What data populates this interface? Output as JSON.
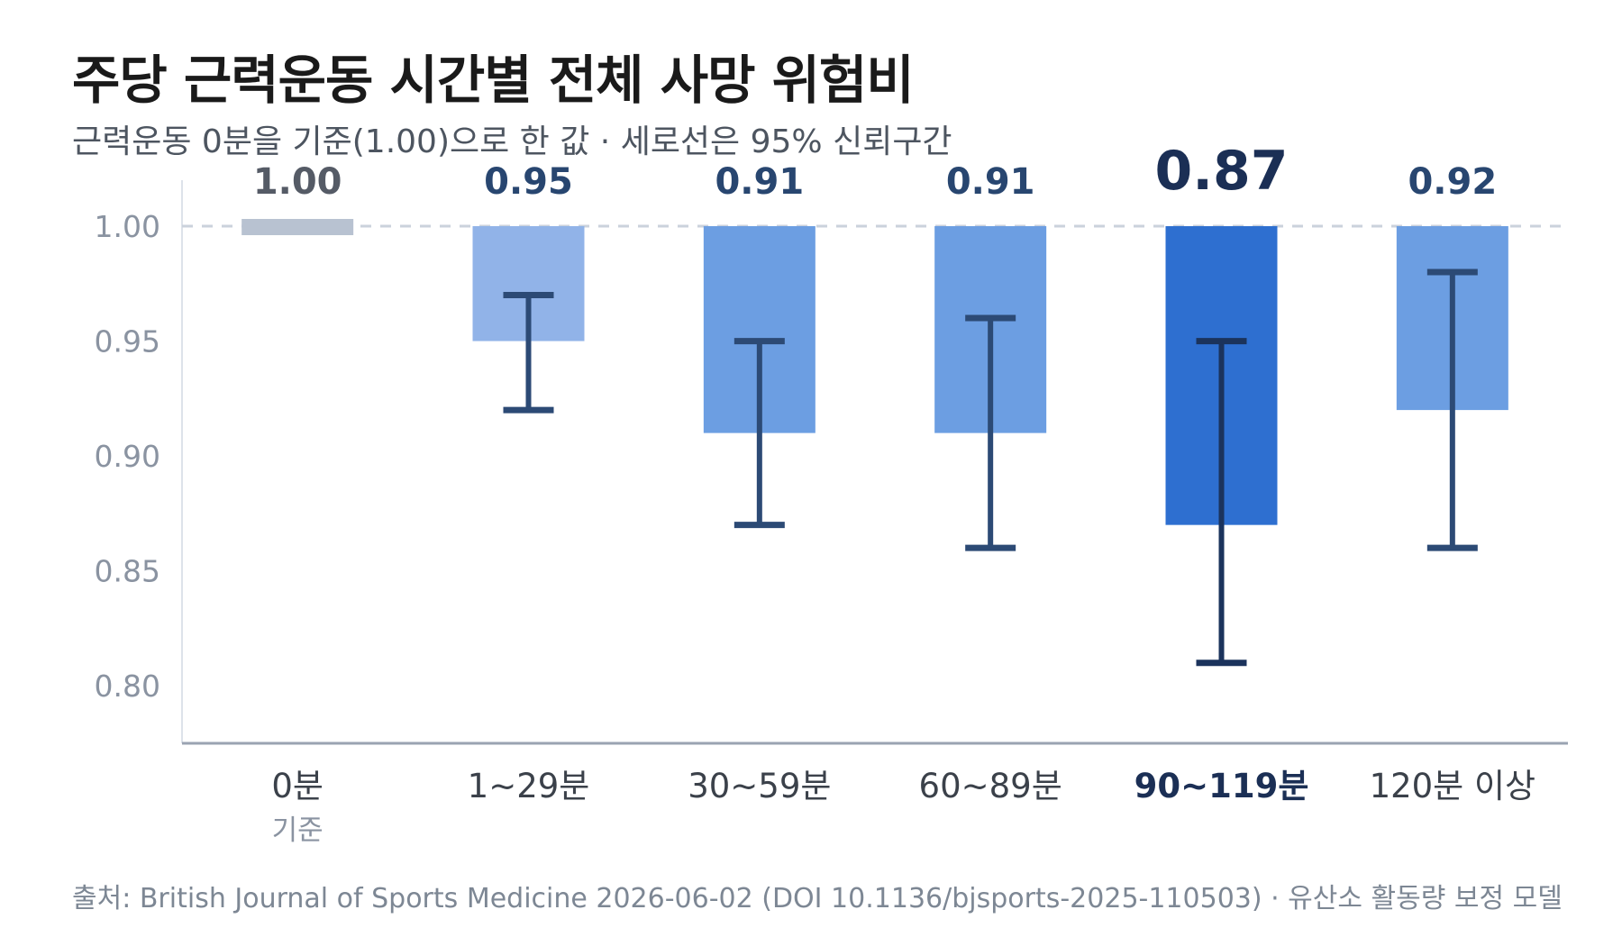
{
  "header": {
    "title": "주당 근력운동 시간별 전체 사망 위험비",
    "subtitle": "근력운동 0분을 기준(1.00)으로 한 값 · 세로선은 95% 신뢰구간"
  },
  "footer": {
    "source": "출처: British Journal of Sports Medicine 2026-06-02 (DOI 10.1136/bjsports-2025-110503) · 유산소 활동량 보정 모델"
  },
  "chart_data": {
    "type": "bar",
    "baseline": 1.0,
    "ylim": [
      0.775,
      1.02
    ],
    "yticks": [
      "1.00",
      "0.95",
      "0.90",
      "0.85",
      "0.80"
    ],
    "reference_line": 1.0,
    "categories": [
      {
        "label": "0분",
        "sublabel": "기준",
        "value": 1.0,
        "value_label": "1.00",
        "ci": null,
        "role": "reference",
        "color": "#b8c2d1"
      },
      {
        "label": "1~29분",
        "value": 0.95,
        "value_label": "0.95",
        "ci": [
          0.92,
          0.97
        ],
        "color": "#91b3e8"
      },
      {
        "label": "30~59분",
        "value": 0.91,
        "value_label": "0.91",
        "ci": [
          0.87,
          0.95
        ],
        "color": "#6c9ee2"
      },
      {
        "label": "60~89분",
        "value": 0.91,
        "value_label": "0.91",
        "ci": [
          0.86,
          0.96
        ],
        "color": "#6c9ee2"
      },
      {
        "label": "90~119분",
        "value": 0.87,
        "value_label": "0.87",
        "ci": [
          0.81,
          0.95
        ],
        "color": "#2e6fd0",
        "highlight": true
      },
      {
        "label": "120분 이상",
        "value": 0.92,
        "value_label": "0.92",
        "ci": [
          0.86,
          0.98
        ],
        "color": "#6c9ee2"
      }
    ],
    "colors": {
      "ci": "#2c4a75",
      "ci_highlight": "#1b335c",
      "value_text": "#284670",
      "value_highlight": "#1b2f55",
      "reference_text": "#555b66",
      "axis": "#9aa3b2",
      "tick_text": "#8a93a1",
      "category_text": "#3b414a",
      "category_highlight": "#1b2f55",
      "refline": "#cbd2dc"
    }
  }
}
